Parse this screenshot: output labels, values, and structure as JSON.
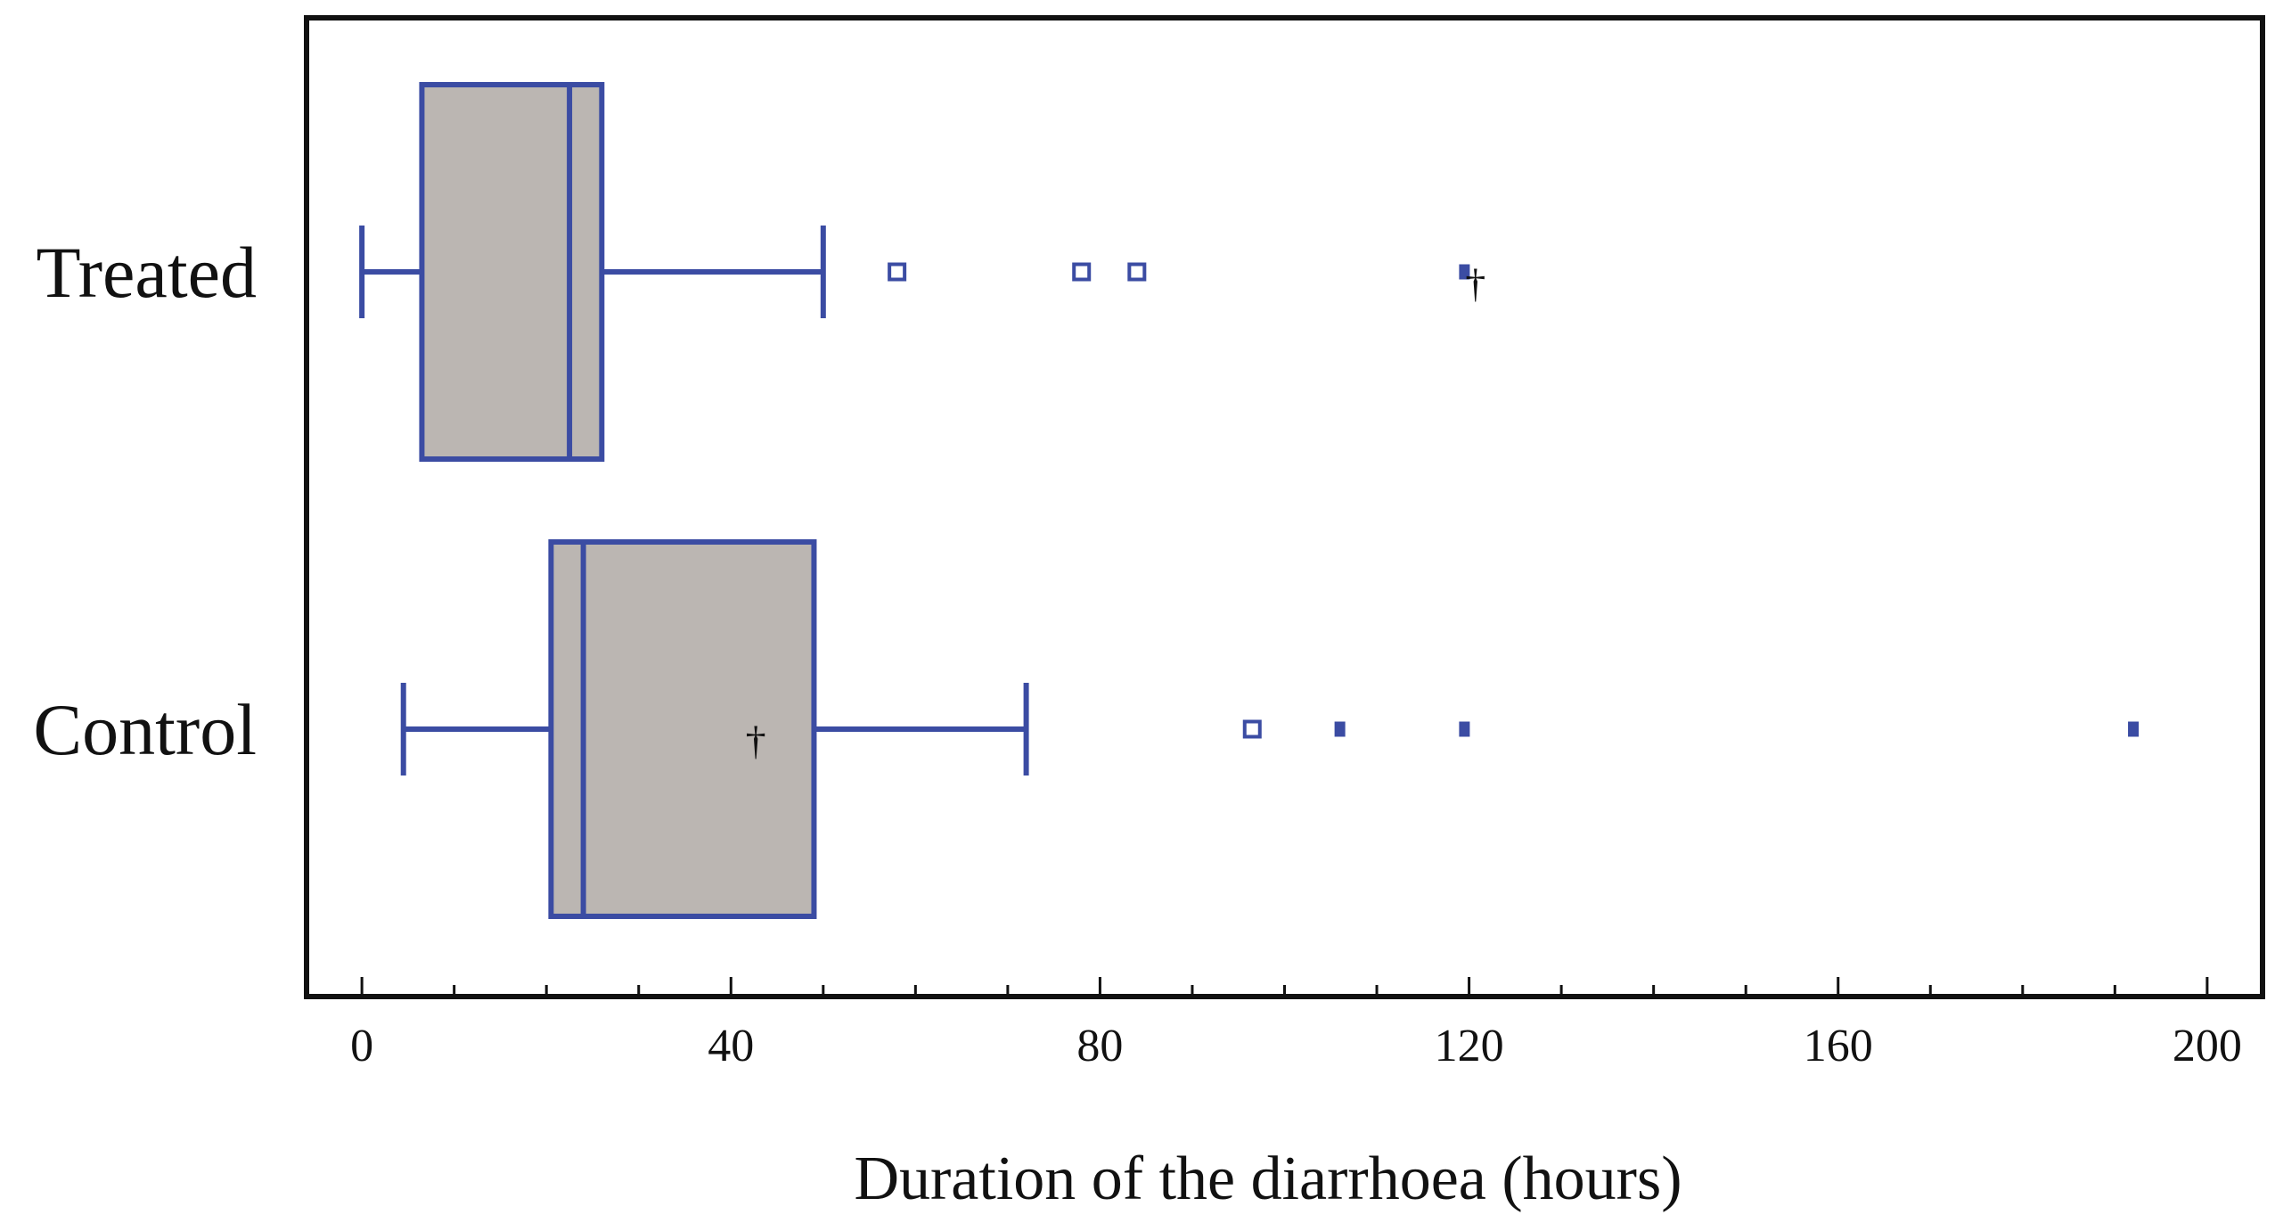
{
  "chart_data": {
    "type": "boxplot",
    "title": "",
    "xlabel": "Duration of the diarrhoea (hours)",
    "ylabel": "",
    "orientation": "horizontal",
    "xlim": [
      -6,
      206
    ],
    "xticks": [
      0,
      40,
      80,
      120,
      160,
      200
    ],
    "xtick_labels": [
      "0",
      "40",
      "80",
      "120",
      "160",
      "200"
    ],
    "minor_tick_step": 10,
    "grid": false,
    "colors": {
      "box_fill": "#bbb6b2",
      "box_stroke": "#3b4ca3",
      "mean_marker": "#111111",
      "frame": "#111111"
    },
    "groups": [
      {
        "name": "Treated",
        "whisker_low": 0,
        "q1": 6.5,
        "median": 22.5,
        "q3": 26,
        "whisker_high": 50,
        "mean": 120.5,
        "outliers_open": [
          58,
          78,
          84
        ],
        "outliers_far": [
          119.5
        ]
      },
      {
        "name": "Control",
        "whisker_low": 4.5,
        "q1": 20.5,
        "median": 24,
        "q3": 49,
        "whisker_high": 72,
        "mean": 42.5,
        "outliers_open": [
          96.5
        ],
        "outliers_far": [
          106,
          119.5,
          192
        ]
      }
    ]
  }
}
